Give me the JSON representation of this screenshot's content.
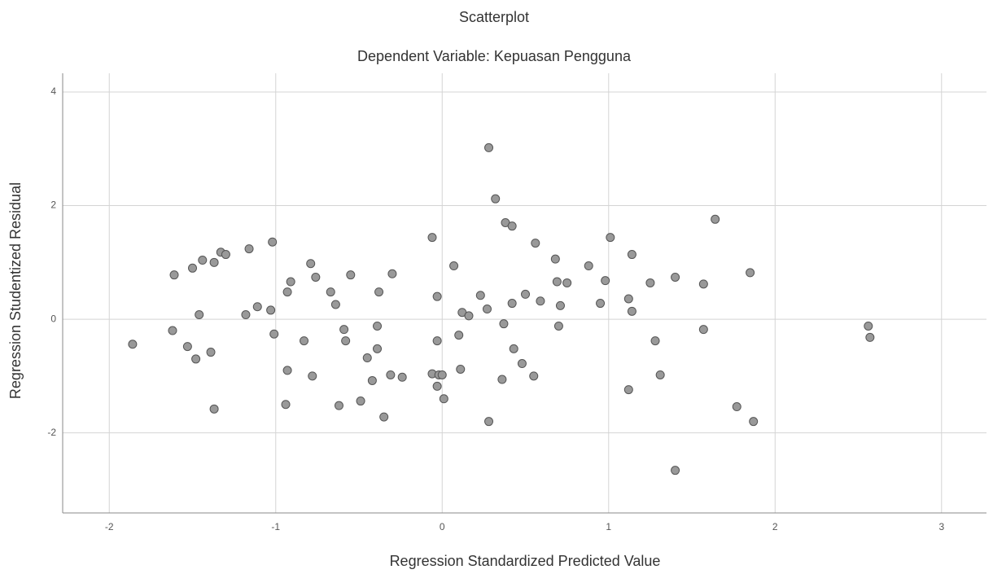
{
  "chart_data": {
    "type": "scatter",
    "title": "Scatterplot",
    "subtitle": "Dependent Variable: Kepuasan Pengguna",
    "x_label": "Regression Standardized Predicted Value",
    "y_label": "Regression Studentized Residual",
    "x": [
      -1.86,
      -1.61,
      -1.62,
      -1.53,
      -1.5,
      -1.48,
      -1.46,
      -1.44,
      -1.39,
      -1.37,
      -1.37,
      -1.33,
      -1.3,
      -1.18,
      -1.16,
      -1.11,
      -1.03,
      -1.02,
      -1.01,
      -0.94,
      -0.93,
      -0.93,
      -0.91,
      -0.83,
      -0.79,
      -0.78,
      -0.76,
      -0.67,
      -0.64,
      -0.62,
      -0.59,
      -0.58,
      -0.55,
      -0.49,
      -0.45,
      -0.42,
      -0.39,
      -0.39,
      -0.38,
      -0.35,
      -0.31,
      -0.3,
      -0.24,
      -0.06,
      -0.06,
      -0.03,
      -0.03,
      -0.03,
      -0.02,
      0.0,
      0.01,
      0.07,
      0.1,
      0.11,
      0.12,
      0.16,
      0.23,
      0.27,
      0.28,
      0.28,
      0.32,
      0.36,
      0.37,
      0.38,
      0.42,
      0.42,
      0.43,
      0.48,
      0.5,
      0.55,
      0.56,
      0.59,
      0.68,
      0.69,
      0.7,
      0.71,
      0.75,
      0.88,
      0.95,
      0.98,
      1.01,
      1.12,
      1.12,
      1.14,
      1.14,
      1.25,
      1.28,
      1.31,
      1.4,
      1.4,
      1.57,
      1.57,
      1.64,
      1.77,
      1.85,
      1.87,
      2.56,
      2.57
    ],
    "values": [
      -0.44,
      0.78,
      -0.2,
      -0.48,
      0.9,
      -0.7,
      0.08,
      1.04,
      -0.58,
      1.0,
      -1.58,
      1.18,
      1.14,
      0.08,
      1.24,
      0.22,
      0.16,
      1.36,
      -0.26,
      -1.5,
      0.48,
      -0.9,
      0.66,
      -0.38,
      0.98,
      -1.0,
      0.74,
      0.48,
      0.26,
      -1.52,
      -0.18,
      -0.38,
      0.78,
      -1.44,
      -0.68,
      -1.08,
      -0.52,
      -0.12,
      0.48,
      -1.72,
      -0.98,
      0.8,
      -1.02,
      1.44,
      -0.96,
      0.4,
      -0.38,
      -1.18,
      -0.98,
      -0.98,
      -1.4,
      0.94,
      -0.28,
      -0.88,
      0.12,
      0.06,
      0.42,
      0.18,
      3.02,
      -1.8,
      2.12,
      -1.06,
      -0.08,
      1.7,
      1.64,
      0.28,
      -0.52,
      -0.78,
      0.44,
      -1.0,
      1.34,
      0.32,
      1.06,
      0.66,
      -0.12,
      0.24,
      0.64,
      0.94,
      0.28,
      0.68,
      1.44,
      -1.24,
      0.36,
      1.14,
      0.14,
      0.64,
      -0.38,
      -0.98,
      -2.66,
      0.74,
      0.62,
      -0.18,
      1.76,
      -1.54,
      0.82,
      -1.8,
      -0.12,
      -0.32
    ],
    "color": "#999999",
    "xlim": [
      -2.28,
      3.27
    ],
    "ylim": [
      -3.41,
      4.33
    ],
    "xticks": [
      -2,
      -1,
      0,
      1,
      2,
      3
    ],
    "yticks": [
      -2,
      0,
      2,
      4
    ],
    "grid": true
  }
}
